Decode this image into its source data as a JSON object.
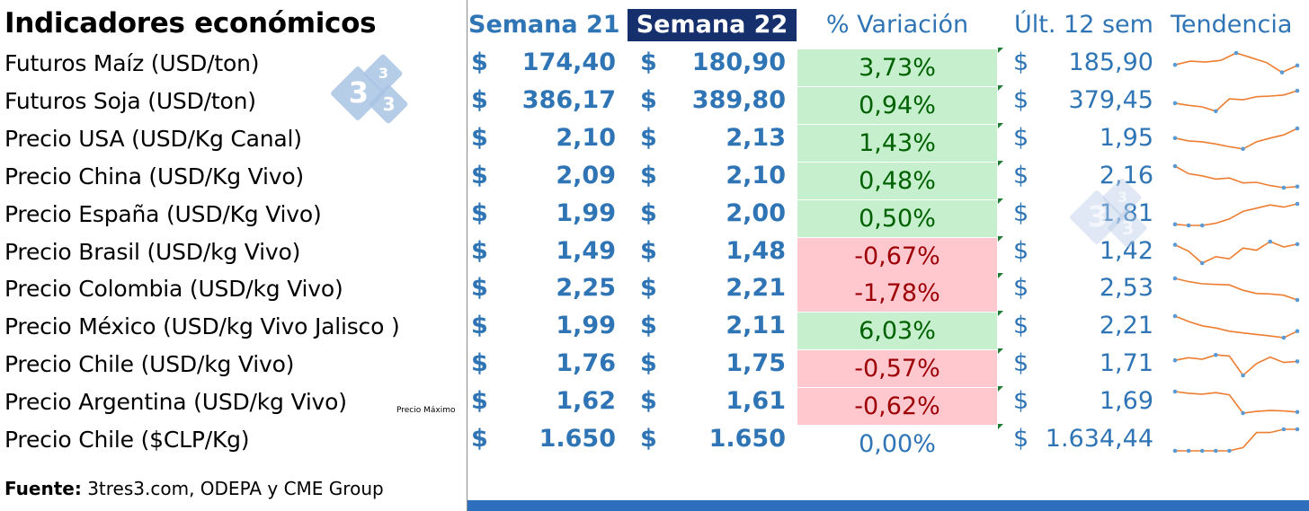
{
  "title": "Indicadores económicos",
  "headers": {
    "week21": "Semana 21",
    "week22": "Semana 22",
    "variation": "% Variación",
    "last12": "Últ. 12 sem",
    "trend": "Tendencia"
  },
  "currency_symbol": "$",
  "rows": [
    {
      "label": "Futuros Maíz (USD/ton)",
      "w21": "174,40",
      "w22": "180,90",
      "variation": "3,73%",
      "status": "pos",
      "last12": "185,90",
      "trend": [
        0.45,
        0.62,
        0.58,
        0.66,
        1.0,
        0.78,
        0.55,
        0.1,
        0.42
      ],
      "tag": ""
    },
    {
      "label": "Futuros Soja (USD/ton)",
      "w21": "386,17",
      "w22": "389,80",
      "variation": "0,94%",
      "status": "pos",
      "last12": "379,45",
      "trend": [
        0.42,
        0.32,
        0.25,
        0.05,
        0.62,
        0.58,
        0.72,
        0.75,
        0.8,
        1.0
      ],
      "tag": ""
    },
    {
      "label": "Precio USA (USD/Kg Canal)",
      "w21": "2,10",
      "w22": "2,13",
      "variation": "1,43%",
      "status": "pos",
      "last12": "1,95",
      "trend": [
        0.55,
        0.42,
        0.38,
        0.28,
        0.15,
        0.05,
        0.38,
        0.55,
        0.7,
        1.0
      ],
      "tag": ""
    },
    {
      "label": "Precio China (USD/Kg Vivo)",
      "w21": "2,09",
      "w22": "2,10",
      "variation": "0,48%",
      "status": "pos",
      "last12": "2,16",
      "trend": [
        1.0,
        0.65,
        0.55,
        0.4,
        0.45,
        0.22,
        0.25,
        0.1,
        0.0,
        0.05
      ],
      "tag": ""
    },
    {
      "label": "Precio España (USD/Kg Vivo)",
      "w21": "1,99",
      "w22": "2,00",
      "variation": "0,50%",
      "status": "pos",
      "last12": "1,81",
      "trend": [
        0.05,
        0.0,
        0.0,
        0.1,
        0.3,
        0.65,
        0.8,
        0.95,
        0.85,
        1.0
      ],
      "tag": ""
    },
    {
      "label": "Precio  Brasil (USD/kg Vivo)",
      "w21": "1,49",
      "w22": "1,48",
      "variation": "-0,67%",
      "status": "neg",
      "last12": "1,42",
      "trend": [
        0.85,
        0.55,
        0.0,
        0.3,
        0.2,
        0.7,
        0.6,
        1.0,
        0.75,
        0.88
      ],
      "tag": ""
    },
    {
      "label": "Precio Colombia (USD/kg Vivo)",
      "w21": "2,25",
      "w22": "2,21",
      "variation": "-1,78%",
      "status": "neg",
      "last12": "2,53",
      "trend": [
        1.0,
        0.85,
        0.75,
        0.72,
        0.7,
        0.45,
        0.3,
        0.28,
        0.22,
        0.0
      ],
      "tag": ""
    },
    {
      "label": "Precio México (USD/kg Vivo Jalisco )",
      "w21": "1,99",
      "w22": "2,11",
      "variation": "6,03%",
      "status": "pos",
      "last12": "2,21",
      "trend": [
        1.0,
        0.75,
        0.55,
        0.45,
        0.3,
        0.22,
        0.15,
        0.08,
        0.0,
        0.3
      ],
      "tag": ""
    },
    {
      "label": "Precio Chile (USD/kg Vivo)",
      "w21": "1,76",
      "w22": "1,75",
      "variation": "-0,57%",
      "status": "neg",
      "last12": "1,71",
      "trend": [
        0.7,
        0.82,
        0.75,
        0.95,
        0.9,
        0.0,
        0.55,
        0.85,
        0.6,
        0.65
      ],
      "tag": ""
    },
    {
      "label": "Precio Argentina (USD/kg Vivo)",
      "w21": "1,62",
      "w22": "1,61",
      "variation": "-0,62%",
      "status": "neg",
      "last12": "1,69",
      "trend": [
        1.0,
        0.92,
        0.88,
        0.95,
        0.85,
        0.0,
        0.08,
        0.12,
        0.1,
        0.05
      ],
      "tag": "Precio Máximo"
    },
    {
      "label": "Precio Chile ($CLP/Kg)",
      "w21": "1.650",
      "w22": "1.650",
      "variation": "0,00%",
      "status": "zero",
      "last12": "1.634,44",
      "trend": [
        0.0,
        0.0,
        0.0,
        0.0,
        0.0,
        0.15,
        0.85,
        0.85,
        1.0,
        1.0
      ],
      "tag": ""
    }
  ],
  "source_label": "Fuente:",
  "source_text": " 3tres3.com, ODEPA y CME Group",
  "watermark_text": "3",
  "colors": {
    "header_blue": "#2f75b5",
    "header_box": "#16306e",
    "positive_fill": "#c6efce",
    "positive_text": "#006100",
    "negative_fill": "#ffc7ce",
    "negative_text": "#9c0006",
    "spark_line": "#ed7d31",
    "spark_marker": "#5b9bd5",
    "bottom_bar": "#2e6fbd"
  },
  "chart_data": {
    "type": "table",
    "title": "Indicadores económicos",
    "columns": [
      "Semana 21",
      "Semana 22",
      "% Variación",
      "Últ. 12 sem",
      "Tendencia"
    ],
    "series": [
      {
        "name": "Semana 21",
        "values": [
          174.4,
          386.17,
          2.1,
          2.09,
          1.99,
          1.49,
          2.25,
          1.99,
          1.76,
          1.62,
          1650
        ]
      },
      {
        "name": "Semana 22",
        "values": [
          180.9,
          389.8,
          2.13,
          2.1,
          2.0,
          1.48,
          2.21,
          2.11,
          1.75,
          1.61,
          1650
        ]
      },
      {
        "name": "% Variación",
        "values": [
          3.73,
          0.94,
          1.43,
          0.48,
          0.5,
          -0.67,
          -1.78,
          6.03,
          -0.57,
          -0.62,
          0.0
        ]
      },
      {
        "name": "Últ. 12 sem",
        "values": [
          185.9,
          379.45,
          1.95,
          2.16,
          1.81,
          1.42,
          2.53,
          2.21,
          1.71,
          1.69,
          1634.44
        ]
      }
    ],
    "categories": [
      "Futuros Maíz (USD/ton)",
      "Futuros Soja (USD/ton)",
      "Precio USA (USD/Kg Canal)",
      "Precio China (USD/Kg Vivo)",
      "Precio España (USD/Kg Vivo)",
      "Precio  Brasil (USD/kg Vivo)",
      "Precio Colombia (USD/kg Vivo)",
      "Precio México (USD/kg Vivo Jalisco )",
      "Precio Chile (USD/kg Vivo)",
      "Precio Argentina (USD/kg Vivo)",
      "Precio Chile ($CLP/Kg)"
    ]
  }
}
